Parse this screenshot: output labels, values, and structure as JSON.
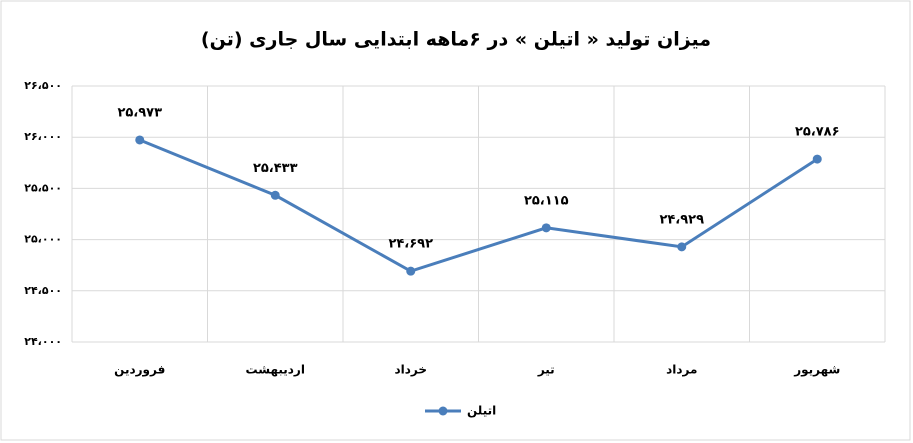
{
  "chart_data": {
    "type": "line",
    "title": "میزان تولید « اتیلن » در ۶ماهه ابتدایی سال جاری (تن)",
    "categories": [
      "فروردین",
      "اردیبهشت",
      "خرداد",
      "تیر",
      "مرداد",
      "شهریور"
    ],
    "series": [
      {
        "name": "اتیلن",
        "color": "#4a7ebb",
        "values": [
          25973,
          25433,
          24692,
          25115,
          24929,
          25786
        ],
        "value_labels": [
          "۲۵،۹۷۳",
          "۲۵،۴۳۳",
          "۲۴،۶۹۲",
          "۲۵،۱۱۵",
          "۲۴،۹۲۹",
          "۲۵،۷۸۶"
        ]
      }
    ],
    "ylim": [
      24000,
      26500
    ],
    "yticks": [
      {
        "value": 24000,
        "label": "۲۴،۰۰۰"
      },
      {
        "value": 24500,
        "label": "۲۴،۵۰۰"
      },
      {
        "value": 25000,
        "label": "۲۵،۰۰۰"
      },
      {
        "value": 25500,
        "label": "۲۵،۵۰۰"
      },
      {
        "value": 26000,
        "label": "۲۶،۰۰۰"
      },
      {
        "value": 26500,
        "label": "۲۶،۵۰۰"
      }
    ],
    "grid": true,
    "legend": "bottom"
  }
}
